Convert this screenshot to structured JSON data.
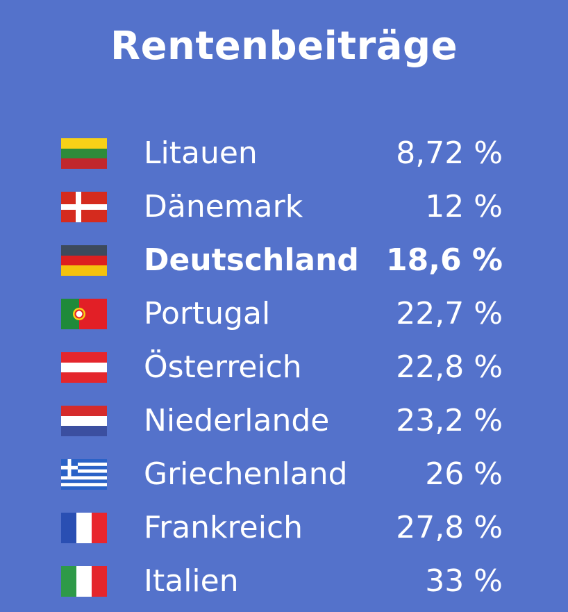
{
  "title": "Rentenbeiträge",
  "chart_data": {
    "type": "table",
    "title": "Rentenbeiträge",
    "categories": [
      "Litauen",
      "Dänemark",
      "Deutschland",
      "Portugal",
      "Österreich",
      "Niederlande",
      "Griechenland",
      "Frankreich",
      "Italien"
    ],
    "values": [
      8.72,
      12,
      18.6,
      22.7,
      22.8,
      23.2,
      26,
      27.8,
      33
    ],
    "unit": "%",
    "rows": [
      {
        "country": "Litauen",
        "value_label": "8,72 %",
        "value": 8.72,
        "flag": "lithuania-flag",
        "highlight": false
      },
      {
        "country": "Dänemark",
        "value_label": "12 %",
        "value": 12,
        "flag": "denmark-flag",
        "highlight": false
      },
      {
        "country": "Deutschland",
        "value_label": "18,6 %",
        "value": 18.6,
        "flag": "germany-flag",
        "highlight": true
      },
      {
        "country": "Portugal",
        "value_label": "22,7 %",
        "value": 22.7,
        "flag": "portugal-flag",
        "highlight": false
      },
      {
        "country": "Österreich",
        "value_label": "22,8 %",
        "value": 22.8,
        "flag": "austria-flag",
        "highlight": false
      },
      {
        "country": "Niederlande",
        "value_label": "23,2 %",
        "value": 23.2,
        "flag": "netherlands-flag",
        "highlight": false
      },
      {
        "country": "Griechenland",
        "value_label": "26 %",
        "value": 26,
        "flag": "greece-flag",
        "highlight": false
      },
      {
        "country": "Frankreich",
        "value_label": "27,8 %",
        "value": 27.8,
        "flag": "france-flag",
        "highlight": false
      },
      {
        "country": "Italien",
        "value_label": "33 %",
        "value": 33,
        "flag": "italy-flag",
        "highlight": false
      }
    ]
  },
  "colors": {
    "background": "#5472cb",
    "text": "#ffffff"
  }
}
